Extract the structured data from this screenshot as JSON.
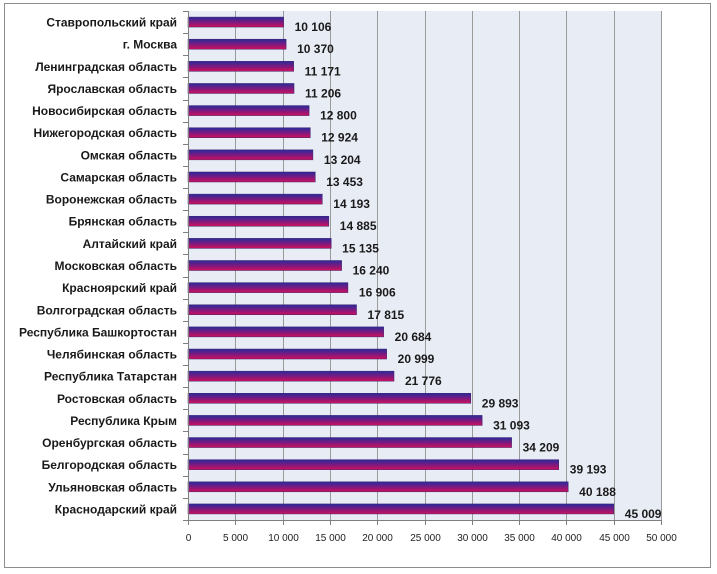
{
  "chart_data": {
    "type": "bar",
    "orientation": "horizontal",
    "categories": [
      "Краснодарский край",
      "Ульяновская область",
      "Белгородская область",
      "Оренбургская область",
      "Республика Крым",
      "Ростовская область",
      "Республика Татарстан",
      "Челябинская область",
      "Республика Башкортостан",
      "Волгоградская область",
      "Красноярский край",
      "Московская область",
      "Алтайский край",
      "Брянская область",
      "Воронежская область",
      "Самарская область",
      "Омская область",
      "Нижегородская область",
      "Новосибирская область",
      "Ярославская область",
      "Ленинградская область",
      "г. Москва",
      "Ставропольский край"
    ],
    "values": [
      45009,
      40188,
      39193,
      34209,
      31093,
      29893,
      21776,
      20999,
      20684,
      17815,
      16906,
      16240,
      15135,
      14885,
      14193,
      13453,
      13204,
      12924,
      12800,
      11206,
      11171,
      10370,
      10106
    ],
    "value_labels": [
      "45 009",
      "40 188",
      "39 193",
      "34 209",
      "31 093",
      "29 893",
      "21 776",
      "20 999",
      "20 684",
      "17 815",
      "16 906",
      "16 240",
      "15 135",
      "14 885",
      "14 193",
      "13 453",
      "13 204",
      "12 924",
      "12 800",
      "11 206",
      "11 171",
      "10 370",
      "10 106"
    ],
    "xlim": [
      0,
      50000
    ],
    "x_ticks": [
      0,
      5000,
      10000,
      15000,
      20000,
      25000,
      30000,
      35000,
      40000,
      45000,
      50000
    ],
    "x_tick_labels": [
      "0",
      "5 000",
      "10 000",
      "15 000",
      "20 000",
      "25 000",
      "30 000",
      "35 000",
      "40 000",
      "45 000",
      "50 000"
    ],
    "title": "",
    "xlabel": "",
    "ylabel": "",
    "grid": "vertical",
    "legend": "none",
    "colors": {
      "bar_top": "#2a2a9a",
      "bar_bottom": "#d0105a",
      "plot_background": "#e8ecf5",
      "gridline": "#9a9a9a"
    }
  }
}
